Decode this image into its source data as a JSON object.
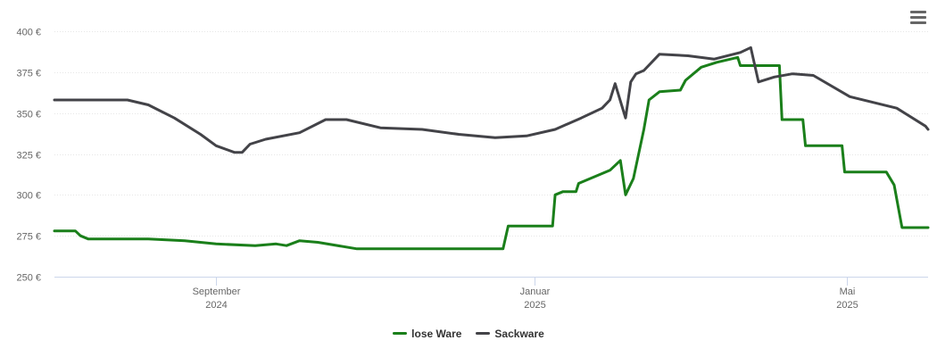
{
  "chart_data": {
    "type": "line",
    "title": "",
    "xlabel": "",
    "ylabel": "",
    "ylim": [
      250,
      400
    ],
    "y_ticks": [
      250,
      275,
      300,
      325,
      350,
      375,
      400
    ],
    "y_tick_suffix": " €",
    "y_tick_labels": [
      "250 €",
      "275 €",
      "300 €",
      "325 €",
      "350 €",
      "375 €",
      "400 €"
    ],
    "xlim": [
      "2024-07-01",
      "2025-06-01"
    ],
    "x_ticks": [
      {
        "date": "2024-09-01",
        "label_line1": "September",
        "label_line2": "2024"
      },
      {
        "date": "2025-01-01",
        "label_line1": "Januar",
        "label_line2": "2025"
      },
      {
        "date": "2025-05-01",
        "label_line1": "Mai",
        "label_line2": "2025"
      }
    ],
    "grid": {
      "horizontal": true,
      "vertical": false
    },
    "legend_position": "bottom-center",
    "series": [
      {
        "name": "lose Ware",
        "color": "#1a7f1a",
        "points": [
          [
            "2024-07-01",
            278
          ],
          [
            "2024-07-09",
            278
          ],
          [
            "2024-07-11",
            275
          ],
          [
            "2024-07-14",
            273
          ],
          [
            "2024-08-06",
            273
          ],
          [
            "2024-08-20",
            272
          ],
          [
            "2024-09-01",
            270
          ],
          [
            "2024-09-16",
            269
          ],
          [
            "2024-09-24",
            270
          ],
          [
            "2024-09-28",
            269
          ],
          [
            "2024-10-03",
            272
          ],
          [
            "2024-10-10",
            271
          ],
          [
            "2024-10-25",
            267
          ],
          [
            "2024-12-20",
            267
          ],
          [
            "2024-12-22",
            281
          ],
          [
            "2024-12-27",
            281
          ],
          [
            "2025-01-08",
            281
          ],
          [
            "2025-01-09",
            300
          ],
          [
            "2025-01-12",
            302
          ],
          [
            "2025-01-17",
            302
          ],
          [
            "2025-01-18",
            307
          ],
          [
            "2025-01-30",
            315
          ],
          [
            "2025-02-03",
            321
          ],
          [
            "2025-02-05",
            300
          ],
          [
            "2025-02-08",
            310
          ],
          [
            "2025-02-12",
            340
          ],
          [
            "2025-02-14",
            358
          ],
          [
            "2025-02-18",
            363
          ],
          [
            "2025-02-26",
            364
          ],
          [
            "2025-02-28",
            370
          ],
          [
            "2025-03-06",
            378
          ],
          [
            "2025-03-12",
            381
          ],
          [
            "2025-03-20",
            384
          ],
          [
            "2025-03-21",
            379
          ],
          [
            "2025-04-05",
            379
          ],
          [
            "2025-04-06",
            346
          ],
          [
            "2025-04-14",
            346
          ],
          [
            "2025-04-15",
            330
          ],
          [
            "2025-04-29",
            330
          ],
          [
            "2025-04-30",
            314
          ],
          [
            "2025-05-16",
            314
          ],
          [
            "2025-05-19",
            306
          ],
          [
            "2025-05-22",
            280
          ],
          [
            "2025-06-01",
            280
          ]
        ]
      },
      {
        "name": "Sackware",
        "color": "#434348",
        "points": [
          [
            "2024-07-01",
            358
          ],
          [
            "2024-07-29",
            358
          ],
          [
            "2024-08-06",
            355
          ],
          [
            "2024-08-16",
            347
          ],
          [
            "2024-08-26",
            337
          ],
          [
            "2024-09-01",
            330
          ],
          [
            "2024-09-08",
            326
          ],
          [
            "2024-09-11",
            326
          ],
          [
            "2024-09-14",
            331
          ],
          [
            "2024-09-20",
            334
          ],
          [
            "2024-10-03",
            338
          ],
          [
            "2024-10-13",
            346
          ],
          [
            "2024-10-21",
            346
          ],
          [
            "2024-11-03",
            341
          ],
          [
            "2024-11-19",
            340
          ],
          [
            "2024-12-03",
            337
          ],
          [
            "2024-12-17",
            335
          ],
          [
            "2024-12-29",
            336
          ],
          [
            "2025-01-09",
            340
          ],
          [
            "2025-01-19",
            347
          ],
          [
            "2025-01-27",
            353
          ],
          [
            "2025-01-30",
            358
          ],
          [
            "2025-02-01",
            368
          ],
          [
            "2025-02-05",
            347
          ],
          [
            "2025-02-07",
            369
          ],
          [
            "2025-02-09",
            374
          ],
          [
            "2025-02-12",
            376
          ],
          [
            "2025-02-18",
            386
          ],
          [
            "2025-03-01",
            385
          ],
          [
            "2025-03-11",
            383
          ],
          [
            "2025-03-21",
            387
          ],
          [
            "2025-03-25",
            390
          ],
          [
            "2025-03-28",
            369
          ],
          [
            "2025-04-03",
            372
          ],
          [
            "2025-04-10",
            374
          ],
          [
            "2025-04-18",
            373
          ],
          [
            "2025-05-02",
            360
          ],
          [
            "2025-05-20",
            353
          ],
          [
            "2025-05-31",
            342
          ],
          [
            "2025-06-01",
            340
          ]
        ]
      }
    ]
  },
  "toolbar": {
    "menu_icon": "hamburger-menu-icon"
  }
}
